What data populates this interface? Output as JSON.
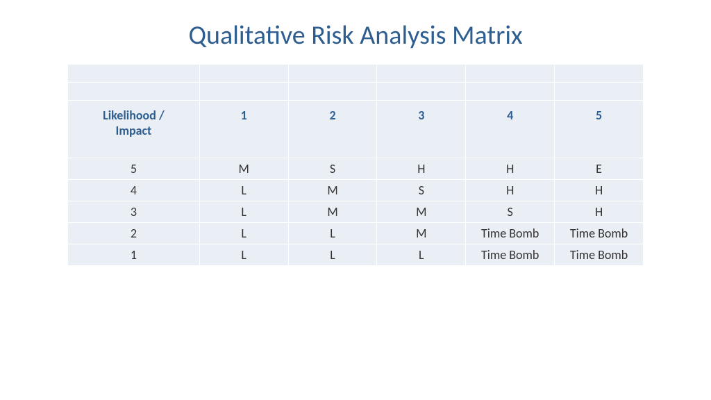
{
  "title": "Qualitative Risk Analysis Matrix",
  "table": {
    "type": "table",
    "background_color": "#eaeef5",
    "border_color": "#ffffff",
    "header_text_color": "#2e5e8f",
    "body_text_color": "#333333",
    "title_color": "#2e5e8f",
    "title_fontsize": 38,
    "header_fontsize": 18,
    "cell_fontsize": 18,
    "header_label": "Likelihood / Impact",
    "columns": [
      "1",
      "2",
      "3",
      "4",
      "5"
    ],
    "rows": [
      {
        "label": "5",
        "cells": [
          "M",
          "S",
          "H",
          "H",
          "E"
        ]
      },
      {
        "label": "4",
        "cells": [
          "L",
          "M",
          "S",
          "H",
          "H"
        ]
      },
      {
        "label": "3",
        "cells": [
          "L",
          "M",
          "M",
          "S",
          "H"
        ]
      },
      {
        "label": "2",
        "cells": [
          "L",
          "L",
          "M",
          "Time Bomb",
          "Time Bomb"
        ]
      },
      {
        "label": "1",
        "cells": [
          "L",
          "L",
          "L",
          "Time Bomb",
          "Time Bomb"
        ]
      }
    ]
  }
}
